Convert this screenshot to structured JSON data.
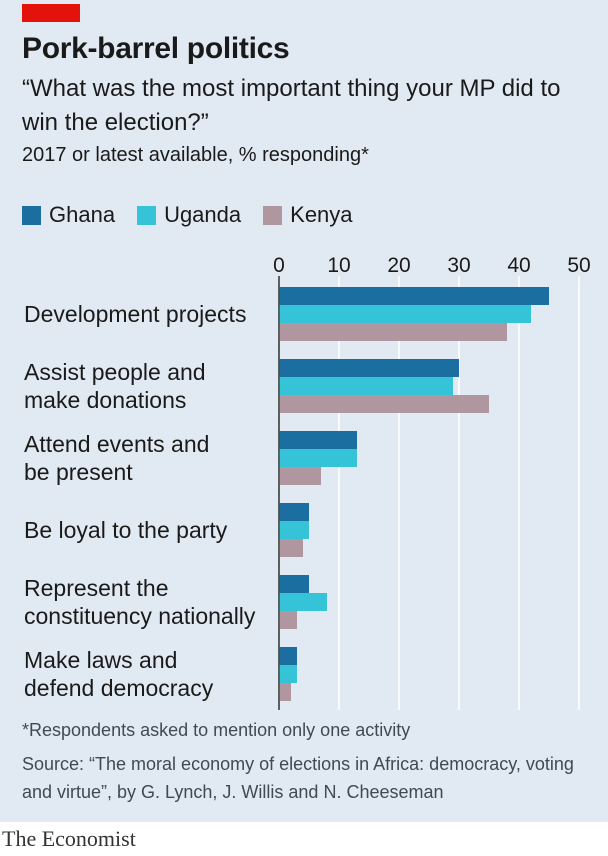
{
  "header": {
    "title": "Pork-barrel politics",
    "subtitle": "“What was the most important thing your MP did to win the election?”",
    "note": "2017 or latest available, % responding*"
  },
  "colors": {
    "ghana": "#1a6fa0",
    "uganda": "#35c4d7",
    "kenya": "#b0969f",
    "accent": "#e3120b",
    "background": "#e1eaf2",
    "grid": "#ffffff"
  },
  "legend": [
    {
      "name": "Ghana",
      "color": "#1a6fa0"
    },
    {
      "name": "Uganda",
      "color": "#35c4d7"
    },
    {
      "name": "Kenya",
      "color": "#b0969f"
    }
  ],
  "chart_data": {
    "type": "bar",
    "orientation": "horizontal",
    "title": "Pork-barrel politics",
    "categories": [
      "Development projects",
      "Assist people and make donations",
      "Attend events and be present",
      "Be loyal to the party",
      "Represent the constituency nationally",
      "Make laws and defend democracy"
    ],
    "category_lines": [
      [
        "Development projects"
      ],
      [
        "Assist people and",
        "make donations"
      ],
      [
        "Attend events and",
        "be present"
      ],
      [
        "Be loyal to the party"
      ],
      [
        "Represent the",
        "constituency nationally"
      ],
      [
        "Make laws and",
        "defend democracy"
      ]
    ],
    "series": [
      {
        "name": "Ghana",
        "values": [
          45,
          30,
          13,
          5,
          5,
          3
        ]
      },
      {
        "name": "Uganda",
        "values": [
          42,
          29,
          13,
          5,
          8,
          3
        ]
      },
      {
        "name": "Kenya",
        "values": [
          38,
          35,
          7,
          4,
          3,
          2
        ]
      }
    ],
    "xlim": [
      0,
      50
    ],
    "xticks": [
      0,
      10,
      20,
      30,
      40,
      50
    ],
    "x_axis_position": "top",
    "grid": true,
    "legend_position": "top-left"
  },
  "footer": {
    "footnote": "*Respondents asked to mention only one activity",
    "source": "Source: “The moral economy of elections in Africa: democracy, voting and virtue”, by G. Lynch, J. Willis and N. Cheeseman",
    "brand": "The Economist"
  }
}
